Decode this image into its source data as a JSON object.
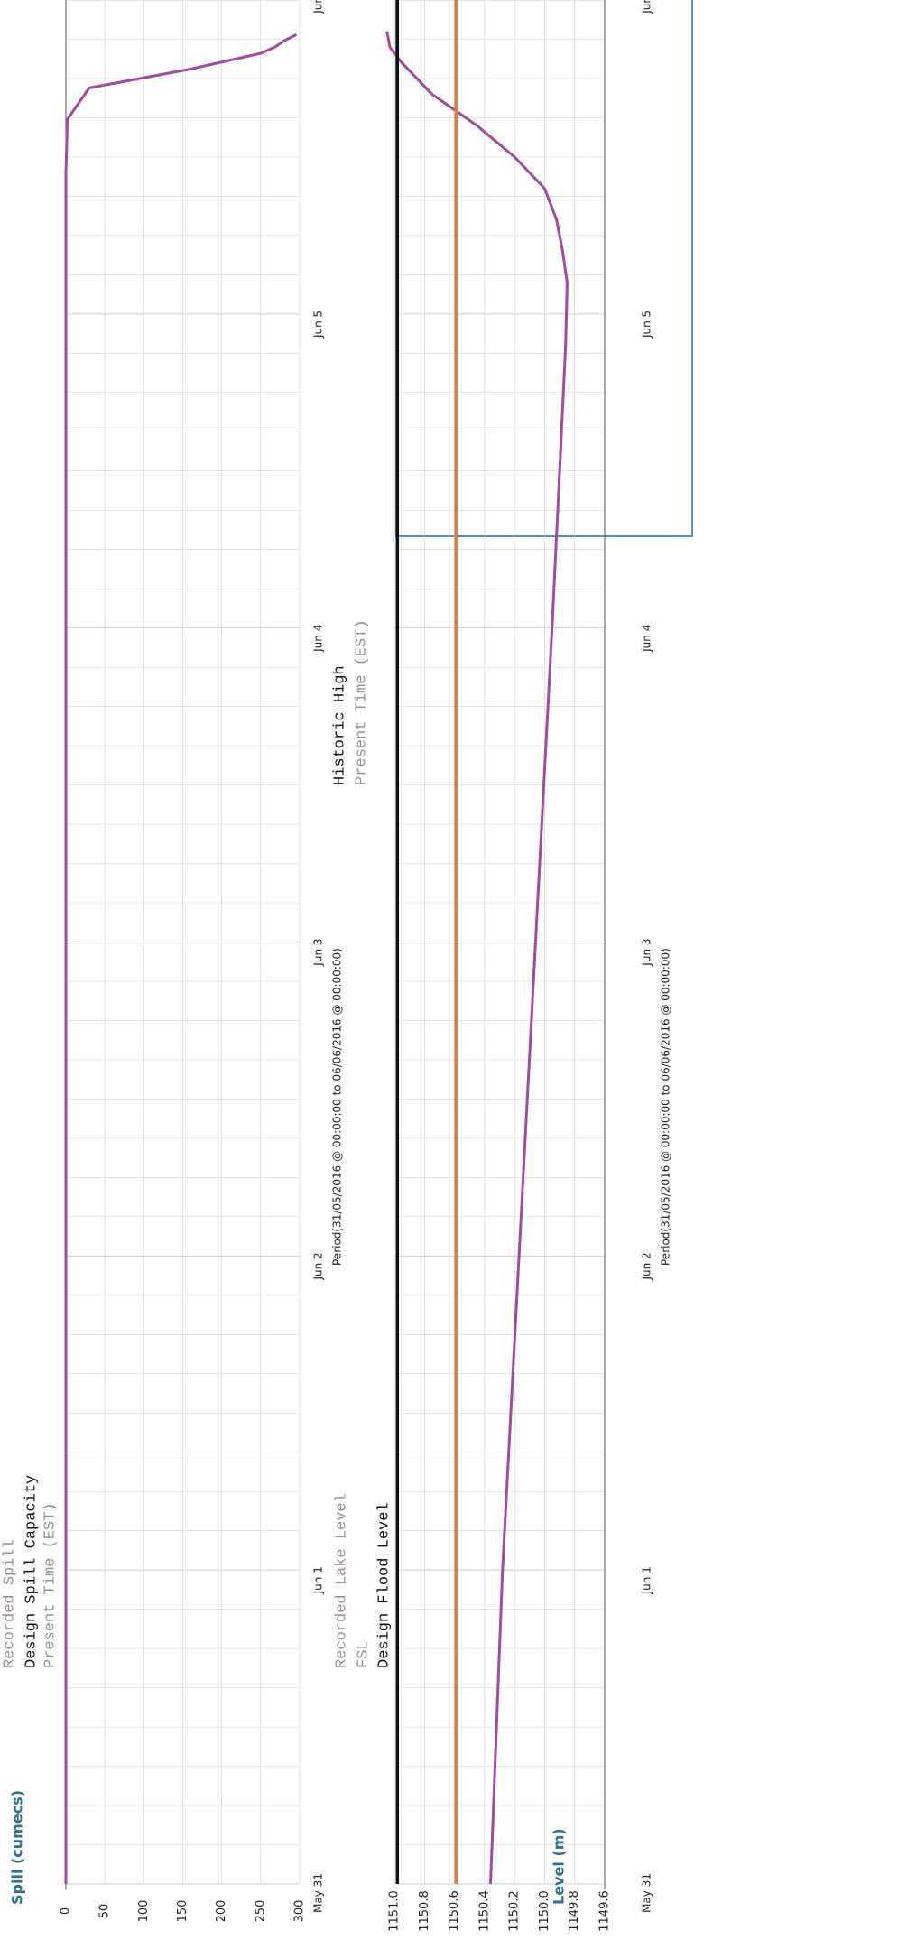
{
  "colors": {
    "recorded": "#a04aa0",
    "historic_high": "#111111",
    "fsl": "#e07c3a",
    "grid": "#cfcfcf",
    "axis_label": "#2f6f8f",
    "info_border": "#5b8fb6",
    "muted_legend": "#9b8c9b"
  },
  "chart_data": [
    {
      "type": "line",
      "ylabel": "Spill (cumecs)",
      "period": "Period(31/05/2016 @ 00:00:00 to 06/06/2016 @ 00:00:00)",
      "legend": [
        "Recorded Spill",
        "Design Spill Capacity",
        "Present Time (EST)"
      ],
      "x_ticks": [
        "May 31",
        "Jun 1",
        "Jun 2",
        "Jun 3",
        "Jun 4",
        "Jun 5",
        "Jun"
      ],
      "x_range_days": [
        0,
        6
      ],
      "yticks": [
        "0",
        "50",
        "100",
        "150",
        "200",
        "250",
        "300"
      ],
      "ylim": [
        0,
        300
      ],
      "series": [
        {
          "name": "Recorded Spill",
          "x": [
            0,
            5.3,
            5.45,
            5.62,
            5.72,
            5.78,
            5.83,
            5.85,
            5.87,
            5.89
          ],
          "y": [
            0,
            0,
            0,
            2,
            30,
            160,
            250,
            268,
            280,
            296
          ]
        }
      ]
    },
    {
      "type": "line",
      "ylabel": "Level (m)",
      "period": "Period(31/05/2016 @ 00:00:00 to 06/06/2016 @ 00:00:00)",
      "legend": [
        "Recorded Lake Level",
        "FSL",
        "Design Flood Level",
        "Historic High",
        "Present Time (EST)"
      ],
      "x_ticks": [
        "May 31",
        "Jun 1",
        "Jun 2",
        "Jun 3",
        "Jun 4",
        "Jun 5",
        "Jun"
      ],
      "x_range_days": [
        0,
        6
      ],
      "yticks": [
        "1149.6",
        "1149.8",
        "1150.0",
        "1150.2",
        "1150.4",
        "1150.6",
        "1150.8",
        "1151.0"
      ],
      "ylim": [
        1149.6,
        1151.0
      ],
      "series": [
        {
          "name": "Recorded Lake Level",
          "x": [
            0,
            1,
            2,
            3,
            4,
            4.5,
            4.9,
            5.1,
            5.2,
            5.3,
            5.4,
            5.5,
            5.6,
            5.7,
            5.8,
            5.85,
            5.9
          ],
          "y": [
            1150.36,
            1150.28,
            1150.17,
            1150.06,
            1149.95,
            1149.9,
            1149.86,
            1149.85,
            1149.88,
            1149.92,
            1150.0,
            1150.2,
            1150.45,
            1150.75,
            1150.95,
            1151.03,
            1151.05
          ]
        },
        {
          "name": "Historic High",
          "x": [
            0,
            6
          ],
          "y": [
            1150.98,
            1150.98
          ]
        },
        {
          "name": "FSL",
          "x": [
            0,
            6
          ],
          "y": [
            1150.59,
            1150.59
          ]
        }
      ]
    }
  ]
}
